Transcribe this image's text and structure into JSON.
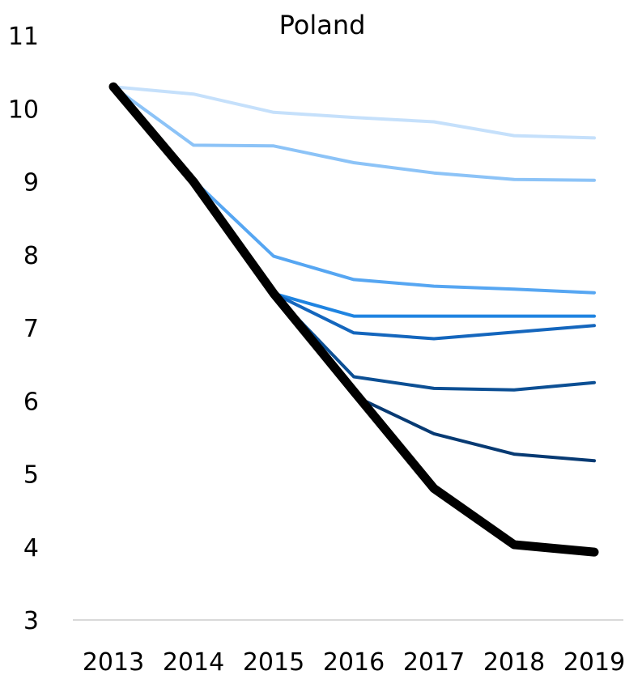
{
  "chart_data": {
    "type": "line",
    "title": "Poland",
    "xlabel": "",
    "ylabel": "",
    "categories": [
      "2013",
      "2014",
      "2015",
      "2016",
      "2017",
      "2018",
      "2019"
    ],
    "ylim": [
      3,
      11
    ],
    "yticks": [
      "3",
      "4",
      "5",
      "6",
      "7",
      "8",
      "9",
      "10",
      "11"
    ],
    "grid": false,
    "legend": "none",
    "series": [
      {
        "color": "#c5e0fb",
        "values": [
          10.3,
          10.2,
          9.95,
          9.88,
          9.82,
          9.63,
          9.6
        ]
      },
      {
        "color": "#8cc3f7",
        "values": [
          10.3,
          9.5,
          9.49,
          9.26,
          9.12,
          9.03,
          9.02
        ]
      },
      {
        "color": "#56a6f2",
        "values": [
          10.3,
          9.02,
          7.98,
          7.66,
          7.57,
          7.53,
          7.48
        ]
      },
      {
        "color": "#1f84e1",
        "values": [
          10.3,
          9.0,
          7.47,
          7.16,
          7.16,
          7.16,
          7.16
        ]
      },
      {
        "color": "#1466bd",
        "values": [
          10.3,
          9.0,
          7.47,
          6.93,
          6.85,
          6.94,
          7.03
        ]
      },
      {
        "color": "#0c4f94",
        "values": [
          10.3,
          9.0,
          7.47,
          6.33,
          6.17,
          6.15,
          6.25
        ]
      },
      {
        "color": "#073a73",
        "values": [
          10.3,
          9.0,
          7.47,
          6.07,
          5.55,
          5.27,
          5.18
        ]
      },
      {
        "color": "#000000",
        "values": [
          10.3,
          9.0,
          7.47,
          6.13,
          4.8,
          4.03,
          3.93
        ]
      }
    ]
  }
}
